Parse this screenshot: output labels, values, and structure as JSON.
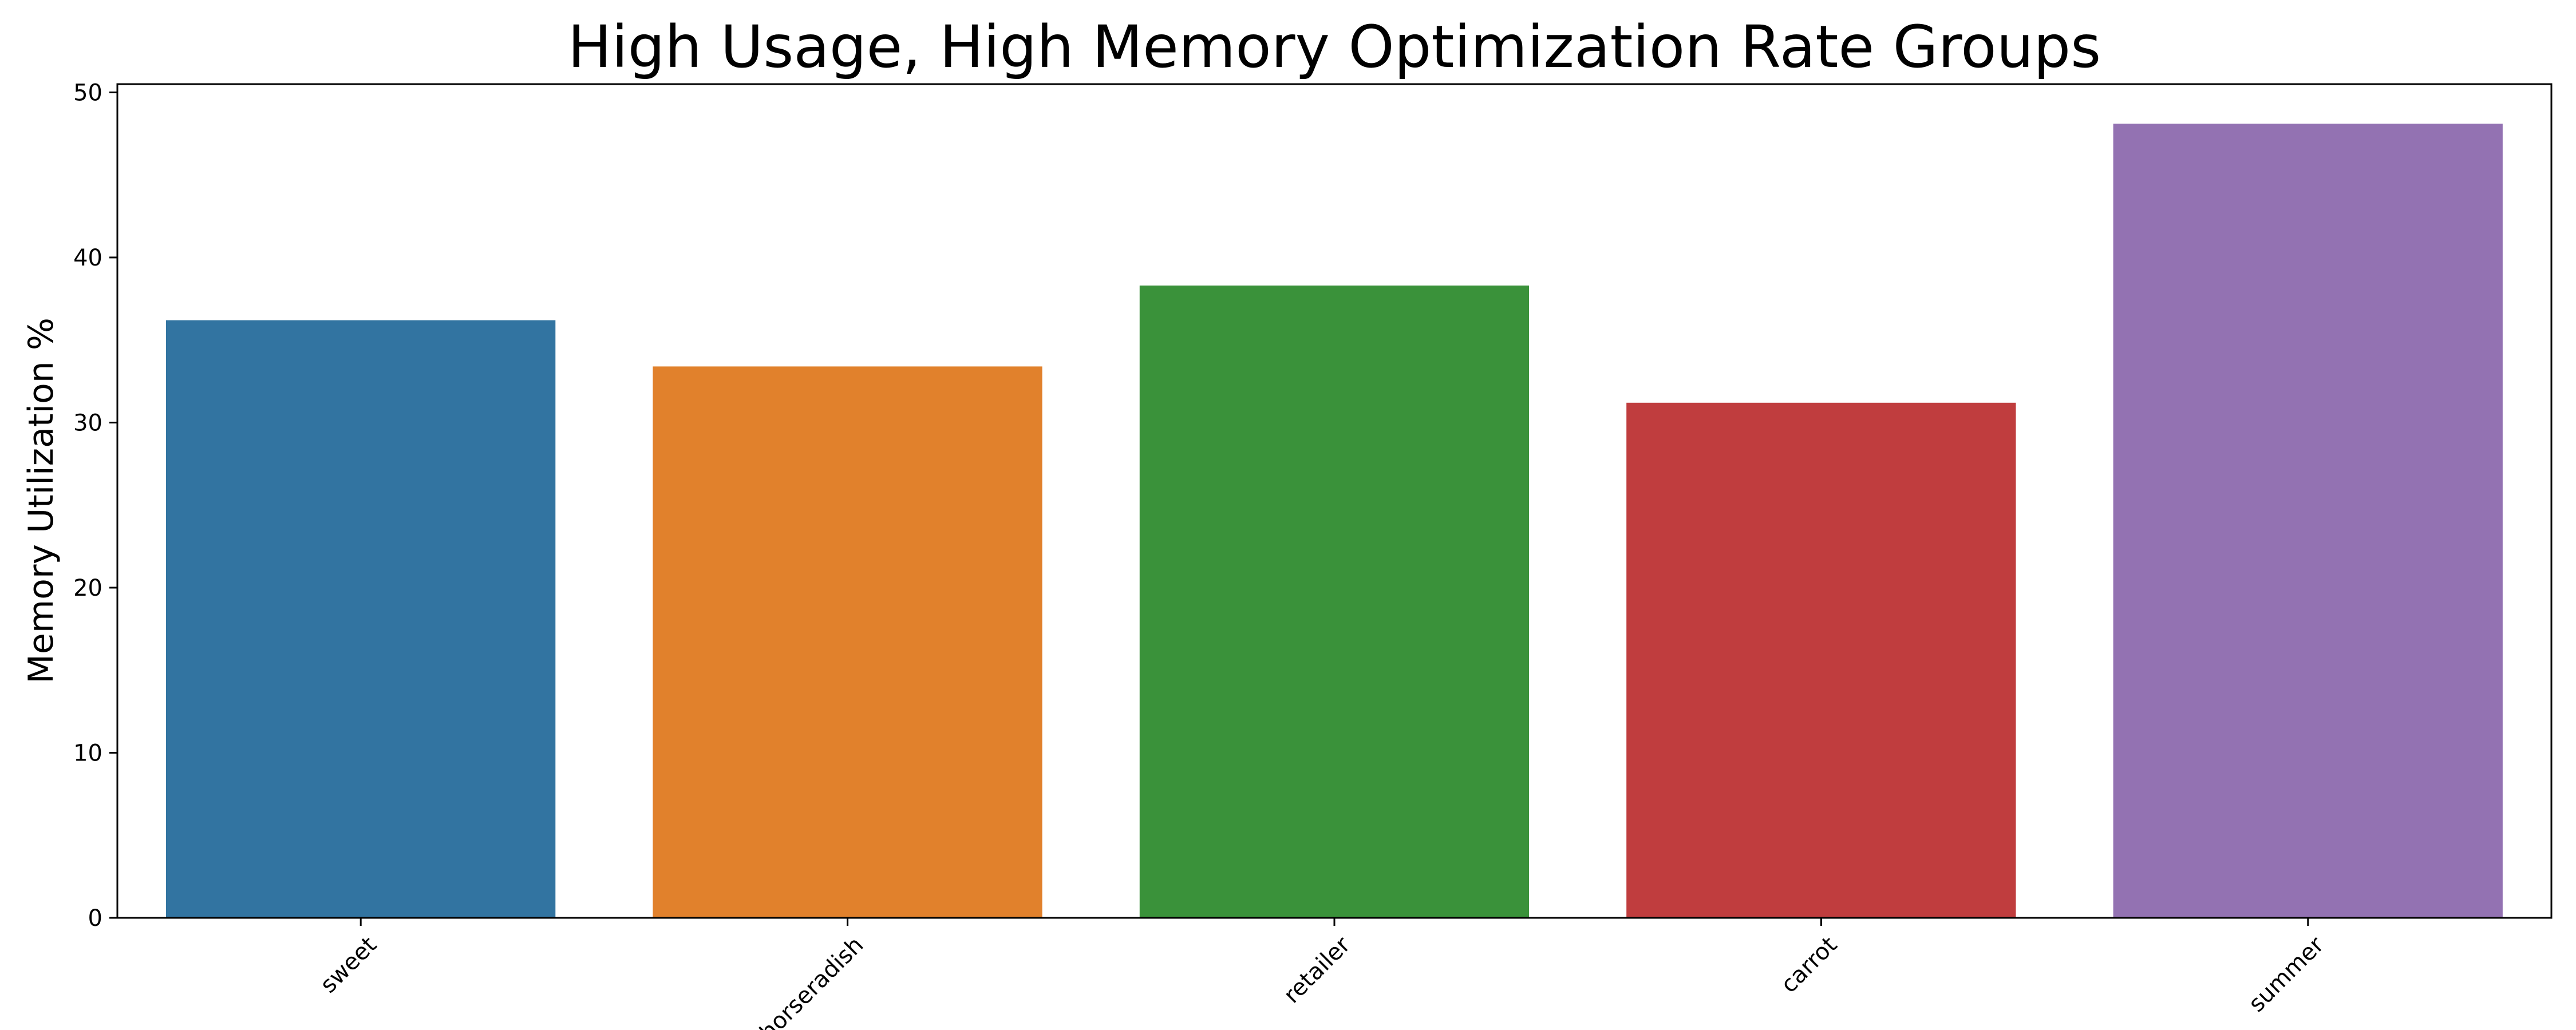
{
  "chart_data": {
    "type": "bar",
    "title": "High Usage, High Memory Optimization Rate Groups",
    "xlabel": "",
    "ylabel": "Memory Utilization %",
    "categories": [
      "sweet",
      "horseradish",
      "retailer",
      "carrot",
      "summer"
    ],
    "values": [
      36.2,
      33.4,
      38.3,
      31.2,
      48.1
    ],
    "colors": [
      "#3274a1",
      "#e1812c",
      "#3a923a",
      "#c03d3e",
      "#9372b2"
    ],
    "ylim": [
      0,
      50.5
    ],
    "yticks": [
      0,
      10,
      20,
      30,
      40,
      50
    ],
    "grid": false,
    "legend": "none"
  }
}
